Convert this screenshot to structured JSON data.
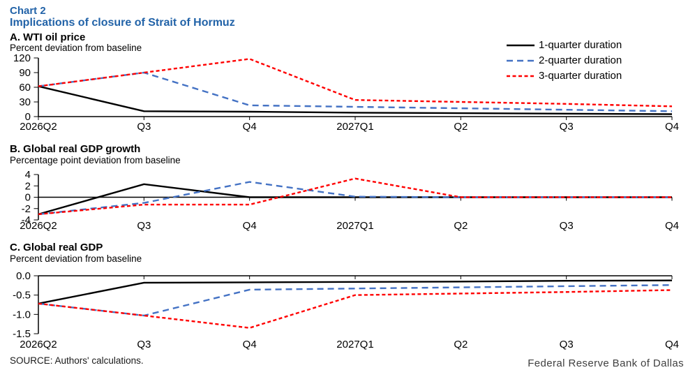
{
  "header": {
    "chart_label": "Chart 2",
    "title": "Implications of closure of Strait of Hormuz"
  },
  "legend": [
    {
      "label": "1-quarter duration",
      "color": "#000000",
      "dash": "solid"
    },
    {
      "label": "2-quarter duration",
      "color": "#4472C4",
      "dash": "dashed"
    },
    {
      "label": "3-quarter duration",
      "color": "#FF0000",
      "dash": "dotted"
    }
  ],
  "chart_data": [
    {
      "type": "line",
      "panel_label": "A. WTI oil price",
      "ylabel": "Percent deviation from baseline",
      "categories": [
        "2026Q2",
        "Q3",
        "Q4",
        "2027Q1",
        "Q2",
        "Q3",
        "Q4"
      ],
      "ylim": [
        0,
        120
      ],
      "yticks": [
        0,
        30,
        60,
        90,
        120
      ],
      "ytick_labels": [
        "0",
        "30",
        "60",
        "90",
        "120"
      ],
      "axis_at": 0,
      "grid": "off",
      "legend_position": "top-right",
      "series": [
        {
          "name": "1-quarter duration",
          "color": "#000000",
          "dash": "solid",
          "values": [
            62,
            11,
            10,
            8,
            7,
            6,
            5
          ]
        },
        {
          "name": "2-quarter duration",
          "color": "#4472C4",
          "dash": "dashed",
          "values": [
            62,
            90,
            23,
            20,
            17,
            14,
            11
          ]
        },
        {
          "name": "3-quarter duration",
          "color": "#FF0000",
          "dash": "dotted",
          "values": [
            62,
            90,
            118,
            34,
            30,
            26,
            21
          ]
        }
      ]
    },
    {
      "type": "line",
      "panel_label": "B. Global real GDP growth",
      "ylabel": "Percentage point deviation from baseline",
      "categories": [
        "2026Q2",
        "Q3",
        "Q4",
        "2027Q1",
        "Q2",
        "Q3",
        "Q4"
      ],
      "ylim": [
        -4,
        4
      ],
      "yticks": [
        -4,
        -2,
        0,
        2,
        4
      ],
      "ytick_labels": [
        "-4",
        "-2",
        "0",
        "2",
        "4"
      ],
      "axis_at": 0,
      "grid": "off",
      "legend_position": "none",
      "series": [
        {
          "name": "1-quarter duration",
          "color": "#000000",
          "dash": "solid",
          "values": [
            -3.0,
            2.3,
            0,
            0,
            0,
            0,
            0
          ]
        },
        {
          "name": "2-quarter duration",
          "color": "#4472C4",
          "dash": "dashed",
          "values": [
            -3.0,
            -1.0,
            2.7,
            0.1,
            0,
            0,
            0
          ]
        },
        {
          "name": "3-quarter duration",
          "color": "#FF0000",
          "dash": "dotted",
          "values": [
            -3.0,
            -1.3,
            -1.3,
            3.3,
            0,
            0,
            0
          ]
        }
      ]
    },
    {
      "type": "line",
      "panel_label": "C. Global real GDP",
      "ylabel": "Percent deviation from baseline",
      "categories": [
        "2026Q2",
        "Q3",
        "Q4",
        "2027Q1",
        "Q2",
        "Q3",
        "Q4"
      ],
      "ylim": [
        -1.5,
        0
      ],
      "yticks": [
        0,
        -0.5,
        -1.0,
        -1.5
      ],
      "ytick_labels": [
        "0.0",
        "-0.5",
        "-1.0",
        "-1.5"
      ],
      "axis_at": 0,
      "grid": "off",
      "legend_position": "none",
      "series": [
        {
          "name": "1-quarter duration",
          "color": "#000000",
          "dash": "solid",
          "values": [
            -0.72,
            -0.18,
            -0.17,
            -0.16,
            -0.15,
            -0.13,
            -0.12
          ]
        },
        {
          "name": "2-quarter duration",
          "color": "#4472C4",
          "dash": "dashed",
          "values": [
            -0.72,
            -1.03,
            -0.36,
            -0.33,
            -0.3,
            -0.27,
            -0.24
          ]
        },
        {
          "name": "3-quarter duration",
          "color": "#FF0000",
          "dash": "dotted",
          "values": [
            -0.72,
            -1.03,
            -1.35,
            -0.5,
            -0.46,
            -0.42,
            -0.37
          ]
        }
      ]
    }
  ],
  "footer": {
    "source": "SOURCE: Authors' calculations.",
    "attribution": "Federal Reserve Bank of Dallas"
  }
}
